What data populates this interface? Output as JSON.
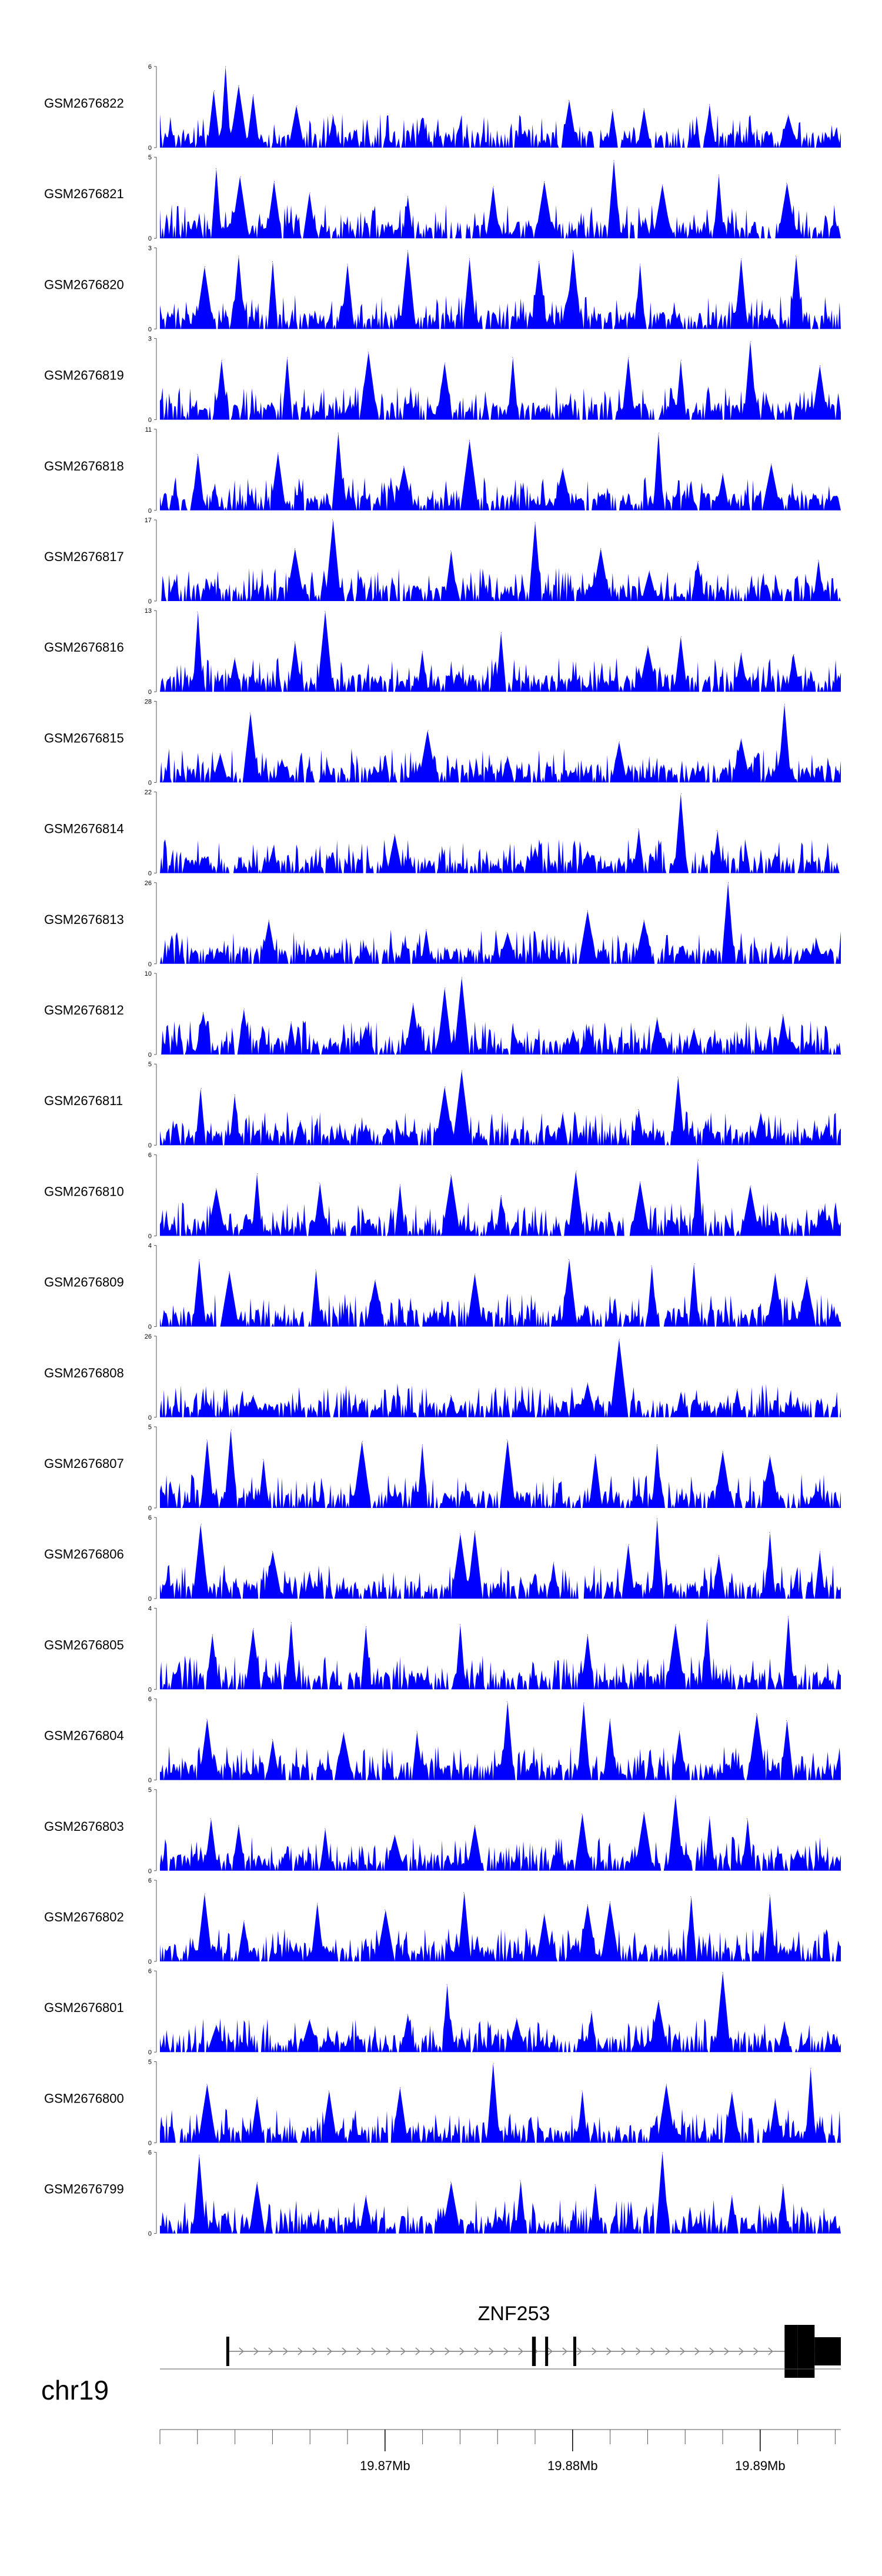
{
  "chart_data": {
    "type": "area",
    "chromosome": "chr19",
    "gene": {
      "name": "ZNF253",
      "strand": "+",
      "start_mb": 19.8616,
      "end_mb": 19.8943,
      "exons_mb": [
        [
          19.8616,
          19.8617
        ],
        [
          19.8779,
          19.8781
        ],
        [
          19.8786,
          19.8787
        ],
        [
          19.8801,
          19.8802
        ]
      ],
      "utr_mb": [
        [
          19.8913,
          19.892
        ]
      ],
      "cds_mb": [
        [
          19.892,
          19.8929
        ]
      ],
      "three_utr_mb": [
        [
          19.8929,
          19.8943
        ]
      ]
    },
    "xlim": [
      19.858,
      19.8943
    ],
    "x_ticks": [
      {
        "value": 19.87,
        "label": "19.87Mb"
      },
      {
        "value": 19.88,
        "label": "19.88Mb"
      },
      {
        "value": 19.89,
        "label": "19.89Mb"
      }
    ],
    "minor_tick_step_mb": 0.002,
    "series": [
      {
        "name": "GSM2676822",
        "ymax": 6,
        "peaks_mb": [
          [
            19.8609,
            4.2
          ],
          [
            19.8615,
            6.0
          ],
          [
            19.8622,
            4.6
          ],
          [
            19.863,
            3.9
          ],
          [
            19.8653,
            3.1
          ],
          [
            19.8672,
            2.4
          ],
          [
            19.872,
            2.2
          ],
          [
            19.8798,
            3.5
          ],
          [
            19.8821,
            2.8
          ],
          [
            19.8838,
            2.9
          ],
          [
            19.8873,
            3.2
          ],
          [
            19.8915,
            2.4
          ]
        ]
      },
      {
        "name": "GSM2676821",
        "ymax": 5,
        "peaks_mb": [
          [
            19.861,
            4.3
          ],
          [
            19.8623,
            3.8
          ],
          [
            19.8641,
            3.5
          ],
          [
            19.866,
            2.8
          ],
          [
            19.8712,
            2.6
          ],
          [
            19.8758,
            3.2
          ],
          [
            19.8785,
            3.5
          ],
          [
            19.8822,
            4.8
          ],
          [
            19.8848,
            3.3
          ],
          [
            19.8878,
            3.9
          ],
          [
            19.8914,
            3.4
          ]
        ]
      },
      {
        "name": "GSM2676820",
        "ymax": 3,
        "peaks_mb": [
          [
            19.8604,
            2.3
          ],
          [
            19.8622,
            2.7
          ],
          [
            19.864,
            2.5
          ],
          [
            19.868,
            2.4
          ],
          [
            19.8712,
            2.9
          ],
          [
            19.8745,
            2.6
          ],
          [
            19.8782,
            2.5
          ],
          [
            19.88,
            2.9
          ],
          [
            19.8836,
            2.4
          ],
          [
            19.889,
            2.6
          ],
          [
            19.8919,
            2.7
          ]
        ]
      },
      {
        "name": "GSM2676819",
        "ymax": 3,
        "peaks_mb": [
          [
            19.8613,
            2.2
          ],
          [
            19.8648,
            2.3
          ],
          [
            19.8691,
            2.5
          ],
          [
            19.8732,
            2.1
          ],
          [
            19.8768,
            2.3
          ],
          [
            19.883,
            2.3
          ],
          [
            19.8858,
            2.2
          ],
          [
            19.8895,
            2.9
          ],
          [
            19.8932,
            2.0
          ]
        ]
      },
      {
        "name": "GSM2676818",
        "ymax": 11,
        "peaks_mb": [
          [
            19.86,
            7.6
          ],
          [
            19.8643,
            7.8
          ],
          [
            19.8675,
            10.5
          ],
          [
            19.871,
            6.0
          ],
          [
            19.8745,
            9.5
          ],
          [
            19.8795,
            5.7
          ],
          [
            19.8846,
            10.5
          ],
          [
            19.888,
            5.0
          ],
          [
            19.8906,
            6.3
          ]
        ]
      },
      {
        "name": "GSM2676817",
        "ymax": 17,
        "peaks_mb": [
          [
            19.8605,
            4.4
          ],
          [
            19.8652,
            11.0
          ],
          [
            19.8672,
            17.0
          ],
          [
            19.8735,
            10.5
          ],
          [
            19.878,
            16.5
          ],
          [
            19.8815,
            11.0
          ],
          [
            19.8841,
            6.3
          ],
          [
            19.8867,
            8.3
          ],
          [
            19.8931,
            8.6
          ]
        ]
      },
      {
        "name": "GSM2676816",
        "ymax": 13,
        "peaks_mb": [
          [
            19.86,
            12.8
          ],
          [
            19.862,
            5.4
          ],
          [
            19.8652,
            8.0
          ],
          [
            19.8668,
            12.9
          ],
          [
            19.872,
            6.5
          ],
          [
            19.8762,
            9.5
          ],
          [
            19.884,
            7.3
          ],
          [
            19.8858,
            8.8
          ],
          [
            19.889,
            6.2
          ],
          [
            19.8918,
            6.0
          ]
        ]
      },
      {
        "name": "GSM2676815",
        "ymax": 28,
        "peaks_mb": [
          [
            19.8612,
            10.0
          ],
          [
            19.8628,
            24.0
          ],
          [
            19.8645,
            8.0
          ],
          [
            19.8695,
            5.0
          ],
          [
            19.8723,
            18.0
          ],
          [
            19.8765,
            9.0
          ],
          [
            19.8825,
            14.0
          ],
          [
            19.889,
            15.0
          ],
          [
            19.8913,
            27.0
          ]
        ]
      },
      {
        "name": "GSM2676814",
        "ymax": 22,
        "peaks_mb": [
          [
            19.8604,
            4.5
          ],
          [
            19.864,
            6.5
          ],
          [
            19.8705,
            10.5
          ],
          [
            19.878,
            7.0
          ],
          [
            19.8808,
            6.0
          ],
          [
            19.8835,
            12.0
          ],
          [
            19.8858,
            21.5
          ],
          [
            19.8877,
            11.5
          ],
          [
            19.8908,
            5.5
          ]
        ]
      },
      {
        "name": "GSM2676813",
        "ymax": 26,
        "peaks_mb": [
          [
            19.8612,
            4.0
          ],
          [
            19.8638,
            14.0
          ],
          [
            19.869,
            6.0
          ],
          [
            19.8722,
            11.0
          ],
          [
            19.8765,
            10.0
          ],
          [
            19.8808,
            17.0
          ],
          [
            19.8838,
            14.0
          ],
          [
            19.8883,
            26.0
          ],
          [
            19.8925,
            5.0
          ]
        ]
      },
      {
        "name": "GSM2676812",
        "ymax": 10,
        "peaks_mb": [
          [
            19.8603,
            5.2
          ],
          [
            19.8625,
            5.6
          ],
          [
            19.865,
            4.0
          ],
          [
            19.869,
            3.5
          ],
          [
            19.8715,
            6.3
          ],
          [
            19.8732,
            8.2
          ],
          [
            19.8741,
            9.5
          ],
          [
            19.88,
            3.0
          ],
          [
            19.8845,
            4.5
          ],
          [
            19.8865,
            3.2
          ],
          [
            19.8912,
            4.9
          ]
        ]
      },
      {
        "name": "GSM2676811",
        "ymax": 5,
        "peaks_mb": [
          [
            19.8602,
            3.5
          ],
          [
            19.862,
            3.1
          ],
          [
            19.8655,
            1.5
          ],
          [
            19.869,
            1.2
          ],
          [
            19.8732,
            3.6
          ],
          [
            19.8741,
            4.6
          ],
          [
            19.8795,
            2.0
          ],
          [
            19.8835,
            2.2
          ],
          [
            19.8856,
            4.2
          ],
          [
            19.89,
            2.0
          ],
          [
            19.8935,
            1.3
          ]
        ]
      },
      {
        "name": "GSM2676810",
        "ymax": 6,
        "peaks_mb": [
          [
            19.861,
            3.5
          ],
          [
            19.8632,
            4.6
          ],
          [
            19.8665,
            3.9
          ],
          [
            19.8708,
            3.8
          ],
          [
            19.8735,
            4.5
          ],
          [
            19.8762,
            3.0
          ],
          [
            19.8802,
            4.8
          ],
          [
            19.8836,
            4.0
          ],
          [
            19.8867,
            5.6
          ],
          [
            19.8895,
            3.7
          ],
          [
            19.8933,
            2.0
          ]
        ]
      },
      {
        "name": "GSM2676809",
        "ymax": 4,
        "peaks_mb": [
          [
            19.8601,
            3.3
          ],
          [
            19.8617,
            2.7
          ],
          [
            19.8663,
            2.8
          ],
          [
            19.8695,
            2.3
          ],
          [
            19.8748,
            2.6
          ],
          [
            19.8798,
            3.3
          ],
          [
            19.8842,
            3.0
          ],
          [
            19.8865,
            3.1
          ],
          [
            19.8908,
            2.6
          ],
          [
            19.8925,
            2.4
          ]
        ]
      },
      {
        "name": "GSM2676808",
        "ymax": 26,
        "peaks_mb": [
          [
            19.8605,
            5.0
          ],
          [
            19.863,
            7.0
          ],
          [
            19.8688,
            6.0
          ],
          [
            19.8735,
            7.0
          ],
          [
            19.8773,
            5.5
          ],
          [
            19.8808,
            11.0
          ],
          [
            19.8825,
            25.0
          ],
          [
            19.8858,
            8.0
          ],
          [
            19.8888,
            9.0
          ],
          [
            19.892,
            6.0
          ]
        ]
      },
      {
        "name": "GSM2676807",
        "ymax": 5,
        "peaks_mb": [
          [
            19.8605,
            4.2
          ],
          [
            19.8618,
            4.8
          ],
          [
            19.8635,
            3.0
          ],
          [
            19.8688,
            4.1
          ],
          [
            19.872,
            3.9
          ],
          [
            19.8765,
            4.2
          ],
          [
            19.8812,
            3.3
          ],
          [
            19.8845,
            3.9
          ],
          [
            19.888,
            3.5
          ],
          [
            19.8905,
            3.2
          ],
          [
            19.893,
            1.0
          ]
        ]
      },
      {
        "name": "GSM2676806",
        "ymax": 6,
        "peaks_mb": [
          [
            19.8602,
            5.5
          ],
          [
            19.864,
            3.5
          ],
          [
            19.866,
            2.0
          ],
          [
            19.874,
            4.8
          ],
          [
            19.8748,
            5.0
          ],
          [
            19.879,
            2.7
          ],
          [
            19.883,
            4.0
          ],
          [
            19.8845,
            5.9
          ],
          [
            19.8878,
            3.2
          ],
          [
            19.8905,
            4.9
          ],
          [
            19.8932,
            3.5
          ]
        ]
      },
      {
        "name": "GSM2676805",
        "ymax": 4,
        "peaks_mb": [
          [
            19.8608,
            2.7
          ],
          [
            19.863,
            3.0
          ],
          [
            19.865,
            3.3
          ],
          [
            19.869,
            3.1
          ],
          [
            19.874,
            3.2
          ],
          [
            19.8808,
            2.7
          ],
          [
            19.8855,
            3.2
          ],
          [
            19.8872,
            3.4
          ],
          [
            19.8915,
            3.6
          ],
          [
            19.8935,
            0.5
          ]
        ]
      },
      {
        "name": "GSM2676804",
        "ymax": 6,
        "peaks_mb": [
          [
            19.8605,
            4.5
          ],
          [
            19.864,
            3.0
          ],
          [
            19.8678,
            3.5
          ],
          [
            19.8717,
            3.6
          ],
          [
            19.8765,
            5.8
          ],
          [
            19.8806,
            5.7
          ],
          [
            19.882,
            4.5
          ],
          [
            19.8857,
            3.6
          ],
          [
            19.8898,
            4.9
          ],
          [
            19.8914,
            4.4
          ]
        ]
      },
      {
        "name": "GSM2676803",
        "ymax": 5,
        "peaks_mb": [
          [
            19.8607,
            3.2
          ],
          [
            19.8622,
            2.8
          ],
          [
            19.8668,
            2.6
          ],
          [
            19.8705,
            2.2
          ],
          [
            19.8748,
            2.8
          ],
          [
            19.8805,
            3.5
          ],
          [
            19.8838,
            3.6
          ],
          [
            19.8855,
            4.6
          ],
          [
            19.8873,
            3.3
          ],
          [
            19.8893,
            3.2
          ],
          [
            19.892,
            1.3
          ]
        ]
      },
      {
        "name": "GSM2676802",
        "ymax": 6,
        "peaks_mb": [
          [
            19.8604,
            5.0
          ],
          [
            19.8625,
            3.0
          ],
          [
            19.8664,
            4.3
          ],
          [
            19.87,
            3.8
          ],
          [
            19.8742,
            5.1
          ],
          [
            19.8785,
            3.5
          ],
          [
            19.8808,
            4.2
          ],
          [
            19.882,
            4.4
          ],
          [
            19.8863,
            4.8
          ],
          [
            19.8905,
            4.9
          ]
        ]
      },
      {
        "name": "GSM2676801",
        "ymax": 6,
        "peaks_mb": [
          [
            19.861,
            2.0
          ],
          [
            19.866,
            2.4
          ],
          [
            19.8712,
            2.8
          ],
          [
            19.8733,
            5.0
          ],
          [
            19.877,
            2.5
          ],
          [
            19.881,
            3.0
          ],
          [
            19.8846,
            3.8
          ],
          [
            19.888,
            5.9
          ],
          [
            19.8913,
            2.2
          ]
        ]
      },
      {
        "name": "GSM2676800",
        "ymax": 5,
        "peaks_mb": [
          [
            19.8605,
            3.6
          ],
          [
            19.8632,
            2.8
          ],
          [
            19.867,
            3.2
          ],
          [
            19.8708,
            3.4
          ],
          [
            19.8758,
            4.9
          ],
          [
            19.8805,
            3.2
          ],
          [
            19.885,
            3.6
          ],
          [
            19.8885,
            3.1
          ],
          [
            19.8908,
            2.7
          ],
          [
            19.8927,
            4.6
          ]
        ]
      },
      {
        "name": "GSM2676799",
        "ymax": 6,
        "peaks_mb": [
          [
            19.8601,
            5.8
          ],
          [
            19.8632,
            3.8
          ],
          [
            19.869,
            2.8
          ],
          [
            19.8735,
            3.8
          ],
          [
            19.8772,
            3.9
          ],
          [
            19.8812,
            3.6
          ],
          [
            19.8848,
            6.0
          ],
          [
            19.8885,
            2.8
          ],
          [
            19.8912,
            3.6
          ]
        ]
      }
    ],
    "fill_color": "#0000ff"
  }
}
